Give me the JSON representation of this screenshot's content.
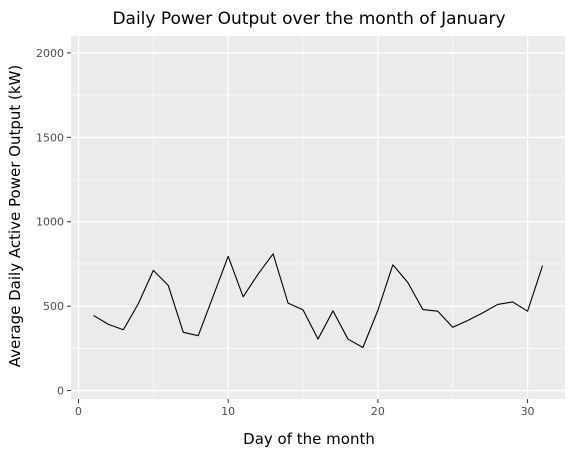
{
  "chart_data": {
    "type": "line",
    "title": "Daily Power Output over the month of January",
    "xlabel": "Day of the month",
    "ylabel": "Average Daily Active Power Output (kW)",
    "xlim": [
      -0.5,
      32.5
    ],
    "ylim": [
      -50,
      2100
    ],
    "x_ticks": [
      0,
      10,
      20,
      30
    ],
    "x_tick_labels": [
      "0",
      "10",
      "20",
      "30"
    ],
    "y_ticks": [
      0,
      500,
      1000,
      1500,
      2000
    ],
    "y_tick_labels": [
      "0",
      "500",
      "1000",
      "1500",
      "2000"
    ],
    "grid": true,
    "panel_background": "#ebebeb",
    "grid_color": "#ffffff",
    "line_color": "#000000",
    "series": [
      {
        "x": [
          1,
          2,
          3,
          4,
          5,
          6,
          7,
          8,
          9,
          10,
          11,
          12,
          13,
          14,
          15,
          16,
          17,
          18,
          19,
          20,
          21,
          22,
          23,
          24,
          25,
          26,
          27,
          28,
          29,
          30,
          31
        ],
        "values": [
          445,
          392,
          360,
          515,
          712,
          622,
          345,
          325,
          560,
          795,
          555,
          690,
          810,
          518,
          478,
          305,
          472,
          305,
          255,
          475,
          745,
          640,
          480,
          470,
          375,
          415,
          460,
          510,
          525,
          470,
          740
        ]
      }
    ]
  }
}
